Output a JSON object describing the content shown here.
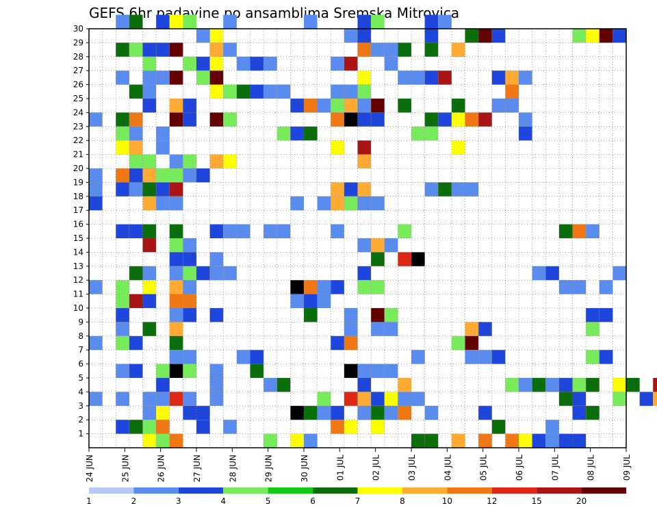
{
  "chart_data": {
    "type": "heatmap",
    "title": "GEFS 6hr padavine po ansamblima Sremska Mitrovica",
    "xlabel": "",
    "ylabel": "",
    "x_ticks": [
      "24 JUN",
      "25 JUN",
      "26 JUN",
      "27 JUN",
      "28 JUN",
      "29 JUN",
      "30 JUN",
      "01 JUL",
      "02 JUL",
      "03 JUL",
      "04 JUL",
      "05 JUL",
      "06 JUL",
      "07 JUL",
      "08 JUL",
      "09 JUL"
    ],
    "x_range": [
      0,
      60
    ],
    "y_ticks": [
      1,
      2,
      3,
      4,
      5,
      6,
      7,
      8,
      9,
      10,
      11,
      12,
      13,
      14,
      15,
      16,
      17,
      18,
      19,
      20,
      21,
      22,
      23,
      24,
      25,
      26,
      27,
      28,
      29,
      30
    ],
    "y_range": [
      0,
      30
    ],
    "grid": true,
    "legend": {
      "placement": "bottom",
      "labels": [
        "1",
        "2",
        "3",
        "4",
        "5",
        "6",
        "7",
        "8",
        "10",
        "12",
        "15",
        "20"
      ],
      "colors": [
        "#b4c8f5",
        "#5a8cf0",
        "#1e46dc",
        "#78eb5a",
        "#14c814",
        "#0a6e0a",
        "#ffff00",
        "#ffaa32",
        "#f07814",
        "#dc2814",
        "#aa1414",
        "#640000"
      ]
    },
    "cells": [
      [
        2,
        30,
        1
      ],
      [
        3,
        30,
        5
      ],
      [
        5,
        30,
        2
      ],
      [
        6,
        30,
        6
      ],
      [
        7,
        30,
        3
      ],
      [
        10,
        30,
        1
      ],
      [
        16,
        30,
        1
      ],
      [
        20,
        30,
        2
      ],
      [
        21,
        30,
        3
      ],
      [
        25,
        30,
        2
      ],
      [
        26,
        30,
        1
      ],
      [
        8,
        29,
        1
      ],
      [
        9,
        29,
        6
      ],
      [
        19,
        29,
        1
      ],
      [
        20,
        29,
        2
      ],
      [
        25,
        29,
        2
      ],
      [
        28,
        29,
        5
      ],
      [
        29,
        29,
        11
      ],
      [
        30,
        29,
        2
      ],
      [
        36,
        29,
        3
      ],
      [
        37,
        29,
        6
      ],
      [
        38,
        29,
        11
      ],
      [
        39,
        29,
        2
      ],
      [
        2,
        28,
        5
      ],
      [
        3,
        28,
        3
      ],
      [
        4,
        28,
        2
      ],
      [
        5,
        28,
        2
      ],
      [
        6,
        28,
        11
      ],
      [
        9,
        28,
        7
      ],
      [
        9,
        28,
        7
      ],
      [
        10,
        28,
        1
      ],
      [
        20,
        28,
        8
      ],
      [
        21,
        28,
        1
      ],
      [
        22,
        28,
        1
      ],
      [
        23,
        28,
        5
      ],
      [
        25,
        28,
        5
      ],
      [
        27,
        28,
        7
      ],
      [
        4,
        27,
        3
      ],
      [
        7,
        27,
        3
      ],
      [
        8,
        27,
        2
      ],
      [
        9,
        27,
        6
      ],
      [
        11,
        27,
        1
      ],
      [
        12,
        27,
        2
      ],
      [
        13,
        27,
        1
      ],
      [
        18,
        27,
        1
      ],
      [
        19,
        27,
        10
      ],
      [
        22,
        27,
        1
      ],
      [
        2,
        26,
        1
      ],
      [
        4,
        26,
        1
      ],
      [
        5,
        26,
        1
      ],
      [
        6,
        26,
        11
      ],
      [
        8,
        26,
        3
      ],
      [
        9,
        26,
        11
      ],
      [
        20,
        26,
        6
      ],
      [
        23,
        26,
        1
      ],
      [
        24,
        26,
        1
      ],
      [
        25,
        26,
        2
      ],
      [
        26,
        26,
        10
      ],
      [
        30,
        26,
        2
      ],
      [
        31,
        26,
        7
      ],
      [
        32,
        26,
        1
      ],
      [
        3,
        25,
        5
      ],
      [
        4,
        25,
        1
      ],
      [
        9,
        25,
        6
      ],
      [
        10,
        25,
        3
      ],
      [
        11,
        25,
        5
      ],
      [
        12,
        25,
        2
      ],
      [
        13,
        25,
        1
      ],
      [
        14,
        25,
        1
      ],
      [
        18,
        25,
        1
      ],
      [
        19,
        25,
        1
      ],
      [
        20,
        25,
        3
      ],
      [
        31,
        25,
        8
      ],
      [
        4,
        24,
        2
      ],
      [
        6,
        24,
        7
      ],
      [
        7,
        24,
        2
      ],
      [
        15,
        24,
        2
      ],
      [
        16,
        24,
        8
      ],
      [
        17,
        24,
        1
      ],
      [
        18,
        24,
        3
      ],
      [
        19,
        24,
        7
      ],
      [
        20,
        24,
        1
      ],
      [
        21,
        24,
        11
      ],
      [
        23,
        24,
        5
      ],
      [
        27,
        24,
        5
      ],
      [
        30,
        24,
        1
      ],
      [
        31,
        24,
        1
      ],
      [
        0,
        23,
        1
      ],
      [
        2,
        23,
        5
      ],
      [
        3,
        23,
        8
      ],
      [
        6,
        23,
        11
      ],
      [
        7,
        23,
        2
      ],
      [
        9,
        23,
        11
      ],
      [
        10,
        23,
        3
      ],
      [
        18,
        23,
        8
      ],
      [
        19,
        23,
        12
      ],
      [
        20,
        23,
        2
      ],
      [
        21,
        23,
        2
      ],
      [
        25,
        23,
        5
      ],
      [
        26,
        23,
        2
      ],
      [
        27,
        23,
        6
      ],
      [
        28,
        23,
        8
      ],
      [
        29,
        23,
        10
      ],
      [
        32,
        23,
        1
      ],
      [
        2,
        22,
        3
      ],
      [
        3,
        22,
        1
      ],
      [
        5,
        22,
        1
      ],
      [
        14,
        22,
        3
      ],
      [
        15,
        22,
        2
      ],
      [
        16,
        22,
        5
      ],
      [
        24,
        22,
        3
      ],
      [
        25,
        22,
        3
      ],
      [
        32,
        22,
        2
      ],
      [
        2,
        21,
        6
      ],
      [
        3,
        21,
        7
      ],
      [
        5,
        21,
        1
      ],
      [
        18,
        21,
        6
      ],
      [
        20,
        21,
        10
      ],
      [
        27,
        21,
        6
      ],
      [
        3,
        20,
        3
      ],
      [
        4,
        20,
        3
      ],
      [
        6,
        20,
        1
      ],
      [
        7,
        20,
        3
      ],
      [
        9,
        20,
        7
      ],
      [
        10,
        20,
        6
      ],
      [
        20,
        20,
        7
      ],
      [
        0,
        19,
        1
      ],
      [
        2,
        19,
        8
      ],
      [
        3,
        19,
        2
      ],
      [
        4,
        19,
        7
      ],
      [
        5,
        19,
        3
      ],
      [
        6,
        19,
        3
      ],
      [
        7,
        19,
        1
      ],
      [
        8,
        19,
        2
      ],
      [
        0,
        18,
        1
      ],
      [
        2,
        18,
        2
      ],
      [
        3,
        18,
        1
      ],
      [
        4,
        18,
        5
      ],
      [
        5,
        18,
        2
      ],
      [
        6,
        18,
        10
      ],
      [
        18,
        18,
        7
      ],
      [
        19,
        18,
        2
      ],
      [
        20,
        18,
        7
      ],
      [
        25,
        18,
        1
      ],
      [
        26,
        18,
        5
      ],
      [
        27,
        18,
        1
      ],
      [
        28,
        18,
        1
      ],
      [
        0,
        17,
        2
      ],
      [
        4,
        17,
        7
      ],
      [
        5,
        17,
        1
      ],
      [
        6,
        17,
        1
      ],
      [
        15,
        17,
        1
      ],
      [
        17,
        17,
        1
      ],
      [
        18,
        17,
        7
      ],
      [
        19,
        17,
        3
      ],
      [
        20,
        17,
        1
      ],
      [
        21,
        17,
        1
      ],
      [
        2,
        15,
        2
      ],
      [
        3,
        15,
        2
      ],
      [
        4,
        15,
        5
      ],
      [
        6,
        15,
        5
      ],
      [
        9,
        15,
        2
      ],
      [
        10,
        15,
        1
      ],
      [
        11,
        15,
        1
      ],
      [
        13,
        15,
        1
      ],
      [
        14,
        15,
        1
      ],
      [
        18,
        15,
        1
      ],
      [
        23,
        15,
        3
      ],
      [
        35,
        15,
        5
      ],
      [
        36,
        15,
        8
      ],
      [
        37,
        15,
        1
      ],
      [
        4,
        14,
        10
      ],
      [
        6,
        14,
        3
      ],
      [
        7,
        14,
        1
      ],
      [
        20,
        14,
        1
      ],
      [
        21,
        14,
        7
      ],
      [
        22,
        14,
        1
      ],
      [
        6,
        13,
        2
      ],
      [
        7,
        13,
        2
      ],
      [
        9,
        13,
        1
      ],
      [
        21,
        13,
        5
      ],
      [
        23,
        13,
        9
      ],
      [
        24,
        13,
        12
      ],
      [
        3,
        12,
        5
      ],
      [
        4,
        12,
        1
      ],
      [
        6,
        12,
        1
      ],
      [
        7,
        12,
        3
      ],
      [
        8,
        12,
        2
      ],
      [
        9,
        12,
        1
      ],
      [
        10,
        12,
        1
      ],
      [
        20,
        12,
        2
      ],
      [
        33,
        12,
        1
      ],
      [
        34,
        12,
        2
      ],
      [
        39,
        12,
        1
      ],
      [
        0,
        11,
        1
      ],
      [
        2,
        11,
        3
      ],
      [
        4,
        11,
        6
      ],
      [
        6,
        11,
        7
      ],
      [
        7,
        11,
        1
      ],
      [
        15,
        11,
        12
      ],
      [
        16,
        11,
        8
      ],
      [
        17,
        11,
        1
      ],
      [
        18,
        11,
        2
      ],
      [
        20,
        11,
        3
      ],
      [
        21,
        11,
        3
      ],
      [
        35,
        11,
        1
      ],
      [
        36,
        11,
        1
      ],
      [
        38,
        11,
        1
      ],
      [
        2,
        10,
        3
      ],
      [
        3,
        10,
        10
      ],
      [
        4,
        10,
        2
      ],
      [
        6,
        10,
        8
      ],
      [
        7,
        10,
        8
      ],
      [
        15,
        10,
        1
      ],
      [
        16,
        10,
        2
      ],
      [
        17,
        10,
        1
      ],
      [
        2,
        9,
        2
      ],
      [
        6,
        9,
        1
      ],
      [
        7,
        9,
        2
      ],
      [
        9,
        9,
        2
      ],
      [
        16,
        9,
        5
      ],
      [
        19,
        9,
        1
      ],
      [
        21,
        9,
        11
      ],
      [
        22,
        9,
        3
      ],
      [
        37,
        9,
        2
      ],
      [
        38,
        9,
        2
      ],
      [
        2,
        8,
        1
      ],
      [
        4,
        8,
        5
      ],
      [
        6,
        8,
        7
      ],
      [
        19,
        8,
        1
      ],
      [
        21,
        8,
        1
      ],
      [
        22,
        8,
        1
      ],
      [
        28,
        8,
        7
      ],
      [
        29,
        8,
        2
      ],
      [
        37,
        8,
        3
      ],
      [
        0,
        7,
        1
      ],
      [
        2,
        7,
        3
      ],
      [
        3,
        7,
        2
      ],
      [
        6,
        7,
        5
      ],
      [
        18,
        7,
        2
      ],
      [
        19,
        7,
        8
      ],
      [
        27,
        7,
        3
      ],
      [
        28,
        7,
        11
      ],
      [
        6,
        6,
        1
      ],
      [
        7,
        6,
        1
      ],
      [
        11,
        6,
        1
      ],
      [
        12,
        6,
        2
      ],
      [
        24,
        6,
        1
      ],
      [
        28,
        6,
        1
      ],
      [
        29,
        6,
        1
      ],
      [
        30,
        6,
        2
      ],
      [
        37,
        6,
        3
      ],
      [
        38,
        6,
        2
      ],
      [
        2,
        5,
        1
      ],
      [
        3,
        5,
        2
      ],
      [
        5,
        5,
        3
      ],
      [
        6,
        5,
        12
      ],
      [
        7,
        5,
        3
      ],
      [
        9,
        5,
        1
      ],
      [
        12,
        5,
        5
      ],
      [
        19,
        5,
        12
      ],
      [
        20,
        5,
        1
      ],
      [
        21,
        5,
        1
      ],
      [
        22,
        5,
        1
      ],
      [
        5,
        4,
        2
      ],
      [
        9,
        4,
        1
      ],
      [
        13,
        4,
        1
      ],
      [
        14,
        4,
        5
      ],
      [
        20,
        4,
        2
      ],
      [
        23,
        4,
        7
      ],
      [
        31,
        4,
        3
      ],
      [
        32,
        4,
        1
      ],
      [
        33,
        4,
        5
      ],
      [
        34,
        4,
        1
      ],
      [
        35,
        4,
        2
      ],
      [
        36,
        4,
        3
      ],
      [
        37,
        4,
        5
      ],
      [
        39,
        4,
        6
      ],
      [
        40,
        4,
        5
      ],
      [
        42,
        4,
        10
      ],
      [
        43,
        4,
        7
      ],
      [
        44,
        4,
        1
      ],
      [
        0,
        3,
        1
      ],
      [
        2,
        3,
        1
      ],
      [
        4,
        3,
        1
      ],
      [
        5,
        3,
        1
      ],
      [
        6,
        3,
        9
      ],
      [
        7,
        3,
        1
      ],
      [
        9,
        3,
        1
      ],
      [
        17,
        3,
        3
      ],
      [
        19,
        3,
        9
      ],
      [
        20,
        3,
        7
      ],
      [
        21,
        3,
        2
      ],
      [
        22,
        3,
        6
      ],
      [
        23,
        3,
        1
      ],
      [
        24,
        3,
        1
      ],
      [
        35,
        3,
        5
      ],
      [
        36,
        3,
        2
      ],
      [
        39,
        3,
        3
      ],
      [
        41,
        3,
        2
      ],
      [
        42,
        3,
        7
      ],
      [
        4,
        2,
        1
      ],
      [
        5,
        2,
        6
      ],
      [
        7,
        2,
        2
      ],
      [
        8,
        2,
        2
      ],
      [
        15,
        2,
        12
      ],
      [
        16,
        2,
        5
      ],
      [
        17,
        2,
        1
      ],
      [
        18,
        2,
        2
      ],
      [
        20,
        2,
        1
      ],
      [
        21,
        2,
        5
      ],
      [
        22,
        2,
        1
      ],
      [
        23,
        2,
        8
      ],
      [
        25,
        2,
        1
      ],
      [
        29,
        2,
        2
      ],
      [
        36,
        2,
        2
      ],
      [
        37,
        2,
        5
      ],
      [
        2,
        1,
        2
      ],
      [
        3,
        1,
        5
      ],
      [
        4,
        1,
        3
      ],
      [
        5,
        1,
        8
      ],
      [
        8,
        1,
        2
      ],
      [
        10,
        1,
        1
      ],
      [
        18,
        1,
        8
      ],
      [
        19,
        1,
        6
      ],
      [
        21,
        1,
        6
      ],
      [
        30,
        1,
        5
      ],
      [
        34,
        1,
        1
      ],
      [
        4,
        0,
        6
      ],
      [
        5,
        0,
        3
      ],
      [
        6,
        0,
        8
      ],
      [
        13,
        0,
        3
      ],
      [
        15,
        0,
        6
      ],
      [
        16,
        0,
        1
      ],
      [
        24,
        0,
        5
      ],
      [
        25,
        0,
        5
      ],
      [
        27,
        0,
        7
      ],
      [
        29,
        0,
        8
      ],
      [
        31,
        0,
        8
      ],
      [
        32,
        0,
        6
      ],
      [
        33,
        0,
        2
      ],
      [
        34,
        0,
        1
      ],
      [
        35,
        0,
        2
      ],
      [
        36,
        0,
        2
      ]
    ]
  }
}
